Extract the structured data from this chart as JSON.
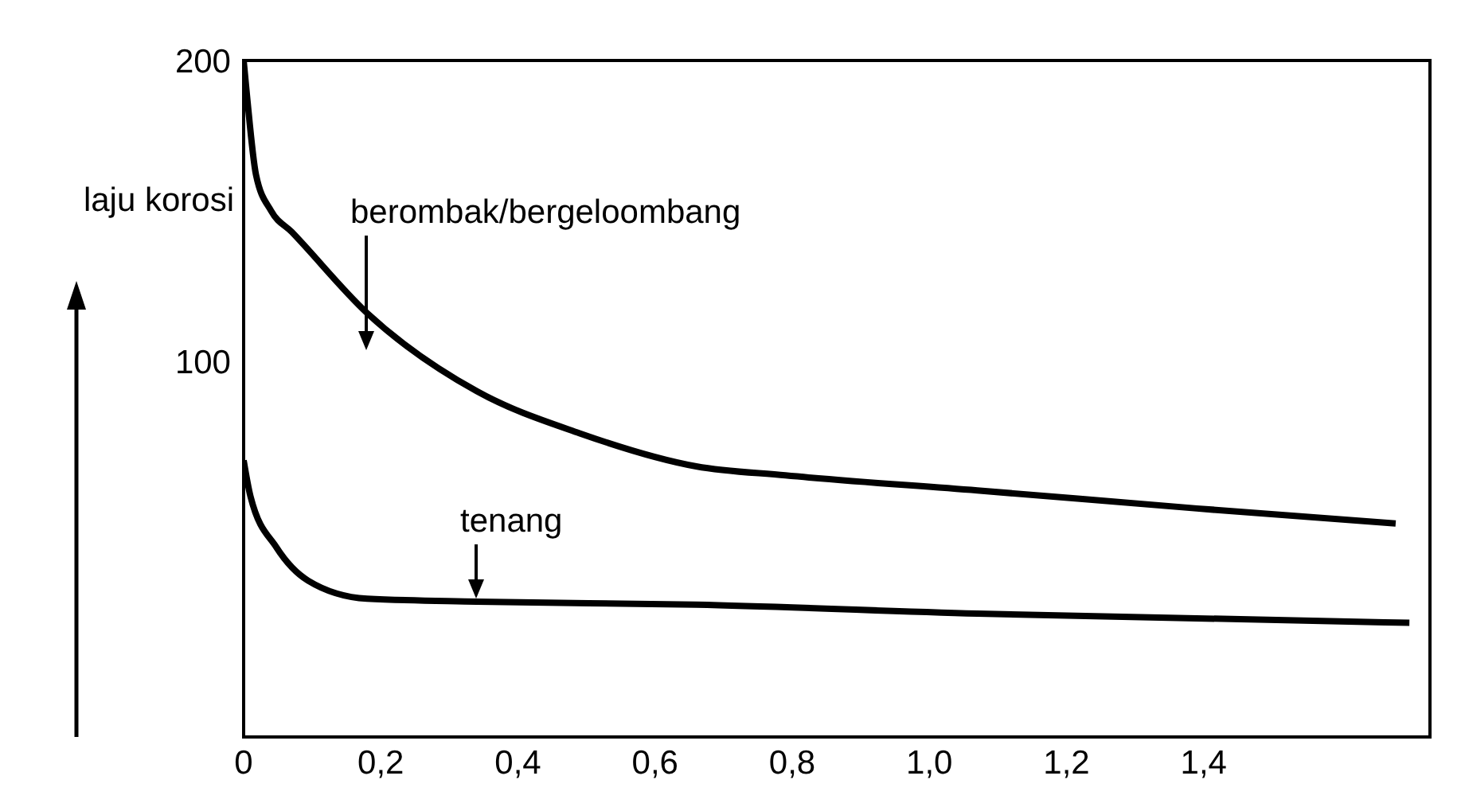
{
  "chart_data": {
    "type": "line",
    "ylabel": "laju korosi",
    "xlim": [
      0,
      1.73
    ],
    "ylim": [
      -25,
      200
    ],
    "xticks": [
      0,
      {
        "value": 0.2,
        "label": "0,2"
      },
      {
        "value": 0.4,
        "label": "0,4"
      },
      {
        "value": 0.6,
        "label": "0,6"
      },
      {
        "value": 0.8,
        "label": "0,8"
      },
      {
        "value": 1.0,
        "label": "1,0"
      },
      {
        "value": 1.2,
        "label": "1,2"
      },
      {
        "value": 1.4,
        "label": "1,4"
      }
    ],
    "yticks": [
      100,
      200
    ],
    "grid": false,
    "legend": false,
    "marker": "none",
    "line_style": "solid",
    "annotations": [
      "berombak/bergeloombang",
      "tenang"
    ],
    "series": [
      {
        "color": "#000000",
        "x": [
          0,
          0.005,
          0.018,
          0.04,
          0.07,
          0.18,
          0.34,
          0.49,
          0.66,
          0.79,
          1.07,
          1.39,
          1.68
        ],
        "values": [
          200,
          188,
          162,
          150,
          143,
          116,
          90,
          76,
          65,
          62,
          57,
          51,
          46
        ]
      },
      {
        "color": "#000000",
        "x": [
          0,
          0.01,
          0.048,
          0.094,
          0.18,
          0.34,
          0.66,
          1.07,
          1.7
        ],
        "values": [
          67,
          55,
          38,
          27,
          21,
          20,
          19,
          16,
          13
        ]
      }
    ]
  }
}
